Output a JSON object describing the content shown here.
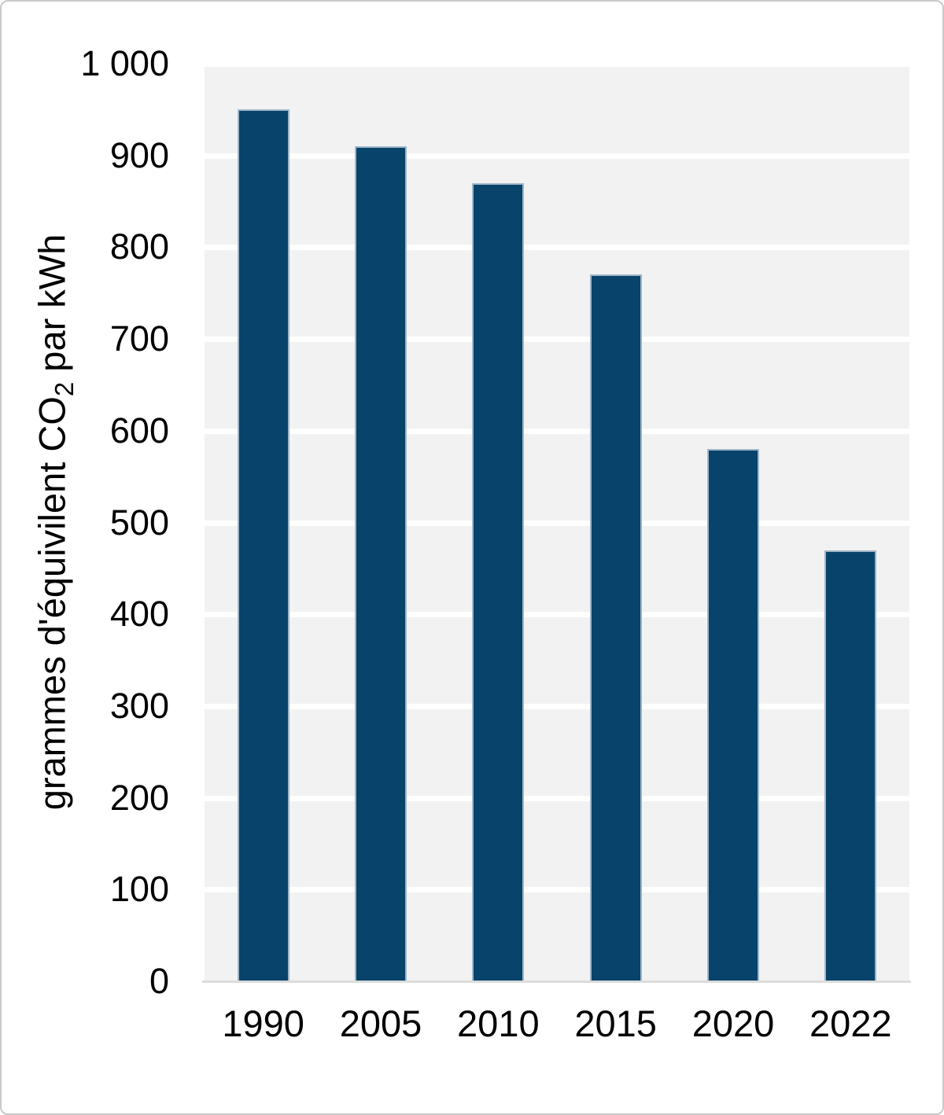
{
  "chart_data": {
    "type": "bar",
    "categories": [
      "1990",
      "2005",
      "2010",
      "2015",
      "2020",
      "2022"
    ],
    "values": [
      950,
      910,
      870,
      770,
      580,
      470
    ],
    "title": "",
    "xlabel": "",
    "ylabel": "grammes d'équivilent CO2 par kWh",
    "ylabel_parts": {
      "prefix": "grammes d'équivilent CO",
      "sub": "2",
      "suffix": " par kWh"
    },
    "ylim": [
      0,
      1000
    ],
    "ytick_step": 100,
    "yticks": [
      {
        "value": 1000,
        "label": "1 000"
      },
      {
        "value": 900,
        "label": "900"
      },
      {
        "value": 800,
        "label": "800"
      },
      {
        "value": 700,
        "label": "700"
      },
      {
        "value": 600,
        "label": "600"
      },
      {
        "value": 500,
        "label": "500"
      },
      {
        "value": 400,
        "label": "400"
      },
      {
        "value": 300,
        "label": "300"
      },
      {
        "value": 200,
        "label": "200"
      },
      {
        "value": 100,
        "label": "100"
      },
      {
        "value": 0,
        "label": "0"
      }
    ],
    "grid": true,
    "legend": false,
    "colors": {
      "bar_fill": "#08436B",
      "bar_border": "#9FB6C9",
      "plot_background": "#F2F2F2",
      "gridline": "#FFFFFF",
      "axis_line": "#DCDCDC",
      "text": "#000000",
      "frame_border": "#C9C9C9"
    }
  }
}
